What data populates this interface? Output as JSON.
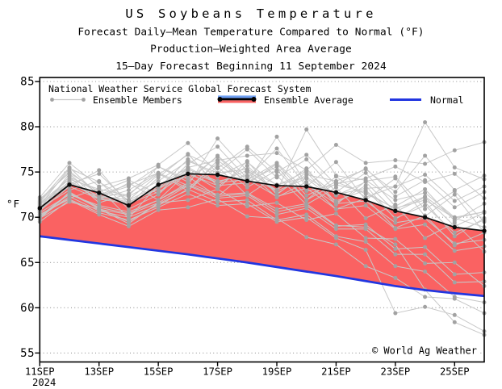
{
  "title": "US Soybeans Temperature",
  "subtitle1": "Forecast Daily—Mean Temperature Compared to Normal (°F)",
  "subtitle2": "Production—Weighted Area Average",
  "subtitle3": "15—Day Forecast Beginning 11 September 2024",
  "watermark": "© World Ag Weather",
  "legend": {
    "header": "National Weather Service Global Forecast System",
    "members_label": "Ensemble Members",
    "average_label": "Ensemble Average",
    "normal_label": "Normal"
  },
  "axes": {
    "y_label": "°F",
    "y_ticks": [
      55,
      60,
      65,
      70,
      75,
      80,
      85
    ],
    "x_tick_labels": [
      "11SEP",
      "13SEP",
      "15SEP",
      "17SEP",
      "19SEP",
      "21SEP",
      "23SEP",
      "25SEP"
    ],
    "x_year": "2024"
  },
  "colors": {
    "red_band": "#fa6262",
    "normal_blue": "#2236e0",
    "legend_light_blue": "#6f9ff2",
    "member_line": "#c8c8c8",
    "member_dot": "#a2a2a2",
    "average_black": "#0a0a0a",
    "grid": "#8a8a8a"
  },
  "chart_data": {
    "type": "line",
    "title": "US Soybeans Temperature",
    "ylabel": "°F",
    "ylim": [
      54,
      85.5
    ],
    "x_days": [
      "11SEP",
      "12SEP",
      "13SEP",
      "14SEP",
      "15SEP",
      "16SEP",
      "17SEP",
      "18SEP",
      "19SEP",
      "20SEP",
      "21SEP",
      "22SEP",
      "23SEP",
      "24SEP",
      "25SEP",
      "26SEP"
    ],
    "ensemble_average": [
      71.0,
      73.6,
      72.7,
      71.3,
      73.6,
      74.8,
      74.7,
      74.0,
      73.5,
      73.4,
      72.75,
      71.9,
      70.7,
      70.0,
      68.9,
      68.5
    ],
    "normal": [
      67.9,
      67.5,
      67.1,
      66.7,
      66.3,
      65.9,
      65.45,
      65.0,
      64.5,
      64.0,
      63.5,
      62.95,
      62.4,
      61.95,
      61.6,
      61.3
    ],
    "members": [
      [
        71.0,
        73.0,
        74.0,
        70.9,
        72.5,
        75.5,
        73.8,
        75.2,
        72.9,
        74.3,
        71.8,
        73.0,
        69.9,
        71.3,
        68.3,
        69.7
      ],
      [
        71.8,
        75.5,
        72.4,
        73.4,
        75.6,
        73.9,
        76.8,
        74.1,
        76.0,
        72.9,
        73.6,
        72.8,
        70.9,
        72.3,
        69.9,
        68.9
      ],
      [
        70.3,
        72.1,
        73.2,
        69.9,
        73.6,
        74.5,
        72.3,
        75.0,
        72.2,
        73.9,
        70.9,
        72.1,
        68.8,
        70.2,
        66.9,
        68.3
      ],
      [
        70.8,
        74.5,
        71.6,
        72.6,
        74.8,
        73.2,
        76.0,
        73.3,
        75.2,
        71.9,
        73.7,
        74.3,
        75.6,
        73.9,
        74.8,
        72.1
      ],
      [
        71.4,
        73.7,
        74.8,
        71.7,
        73.2,
        76.4,
        74.5,
        76.1,
        73.5,
        75.1,
        72.4,
        73.9,
        70.6,
        72.2,
        69.0,
        70.5
      ],
      [
        70.0,
        72.6,
        71.0,
        69.5,
        71.5,
        73.0,
        75.6,
        72.4,
        74.6,
        71.4,
        73.3,
        69.9,
        71.4,
        67.7,
        69.4,
        66.2
      ],
      [
        72.2,
        76.0,
        73.4,
        74.3,
        75.8,
        78.2,
        74.9,
        77.5,
        74.4,
        76.4,
        72.8,
        74.9,
        71.2,
        73.1,
        69.6,
        71.5
      ],
      [
        69.5,
        71.9,
        70.3,
        69.0,
        70.8,
        71.1,
        72.0,
        70.1,
        69.9,
        67.8,
        67.0,
        64.6,
        63.3,
        61.2,
        61.0,
        59.4
      ],
      [
        70.6,
        74.8,
        72.0,
        73.0,
        74.9,
        73.5,
        78.7,
        75.1,
        73.0,
        75.4,
        71.6,
        73.5,
        69.8,
        71.7,
        67.9,
        69.9
      ],
      [
        71.2,
        73.4,
        75.2,
        71.4,
        74.4,
        77.0,
        73.4,
        75.7,
        72.6,
        74.7,
        74.0,
        75.3,
        72.8,
        76.8,
        73.0,
        74.6
      ],
      [
        72.0,
        74.9,
        72.8,
        74.1,
        72.6,
        75.9,
        77.8,
        74.3,
        77.6,
        73.4,
        76.1,
        71.9,
        74.3,
        70.1,
        72.5,
        68.3
      ],
      [
        69.8,
        72.8,
        70.9,
        70.3,
        71.6,
        73.5,
        72.1,
        72.4,
        70.3,
        71.0,
        68.7,
        68.7,
        65.9,
        65.9,
        62.8,
        62.9
      ],
      [
        70.9,
        74.0,
        72.3,
        71.7,
        73.2,
        75.3,
        74.0,
        74.6,
        72.9,
        79.7,
        74.6,
        74.1,
        71.9,
        72.7,
        70.0,
        70.6
      ],
      [
        70.7,
        73.4,
        72.0,
        71.5,
        72.8,
        74.8,
        73.5,
        73.8,
        78.9,
        73.6,
        71.5,
        71.8,
        69.4,
        69.9,
        67.1,
        67.5
      ],
      [
        70.3,
        72.0,
        70.5,
        69.7,
        71.1,
        72.6,
        71.3,
        71.5,
        69.5,
        70.0,
        67.7,
        66.4,
        59.4,
        60.1,
        59.2,
        57.4
      ],
      [
        71.1,
        74.5,
        72.7,
        72.3,
        74.0,
        76.2,
        74.9,
        75.3,
        73.6,
        74.4,
        72.5,
        73.2,
        73.4,
        80.5,
        75.5,
        74.2
      ],
      [
        70.5,
        72.5,
        71.3,
        70.6,
        71.9,
        73.8,
        72.5,
        72.7,
        70.9,
        71.5,
        69.1,
        68.9,
        67.0,
        62.0,
        58.4,
        57.0
      ],
      [
        70.8,
        73.7,
        72.4,
        71.9,
        73.5,
        75.5,
        76.3,
        76.8,
        77.1,
        75.2,
        78.0,
        76.0,
        76.3,
        75.9,
        77.4,
        78.3
      ],
      [
        71.6,
        74.2,
        73.1,
        72.4,
        75.6,
        74.2,
        76.7,
        73.7,
        75.9,
        72.4,
        73.9,
        72.6,
        71.0,
        71.9,
        69.9,
        70.6
      ],
      [
        70.0,
        72.3,
        70.7,
        70.0,
        71.3,
        73.1,
        71.7,
        71.9,
        69.7,
        70.3,
        67.9,
        67.3,
        64.6,
        64.0,
        61.2,
        60.6
      ],
      [
        71.5,
        73.9,
        72.0,
        73.8,
        71.9,
        75.0,
        73.1,
        76.2,
        72.5,
        75.0,
        71.4,
        74.0,
        74.5,
        70.9,
        72.9,
        69.5
      ],
      [
        70.1,
        72.7,
        71.1,
        70.4,
        71.9,
        73.6,
        72.3,
        72.6,
        70.6,
        71.3,
        69.0,
        69.2,
        66.5,
        66.7,
        63.7,
        63.9
      ],
      [
        71.3,
        75.4,
        73.9,
        71.9,
        74.7,
        76.9,
        75.4,
        77.8,
        75.0,
        76.9,
        73.6,
        75.4,
        72.3,
        74.1,
        71.1,
        72.8
      ],
      [
        70.9,
        73.8,
        72.1,
        71.6,
        73.1,
        75.1,
        73.8,
        74.2,
        72.3,
        73.2,
        70.9,
        71.3,
        68.7,
        69.2,
        66.3,
        66.8
      ],
      [
        69.9,
        71.7,
        70.9,
        69.3,
        71.6,
        71.9,
        73.1,
        71.2,
        71.6,
        69.7,
        70.4,
        67.7,
        67.6,
        64.9,
        65.0,
        62.4
      ],
      [
        71.7,
        75.1,
        72.5,
        73.6,
        74.9,
        72.9,
        76.3,
        73.9,
        75.6,
        71.9,
        74.5,
        72.2,
        73.4,
        74.7,
        71.8,
        73.4
      ]
    ]
  }
}
